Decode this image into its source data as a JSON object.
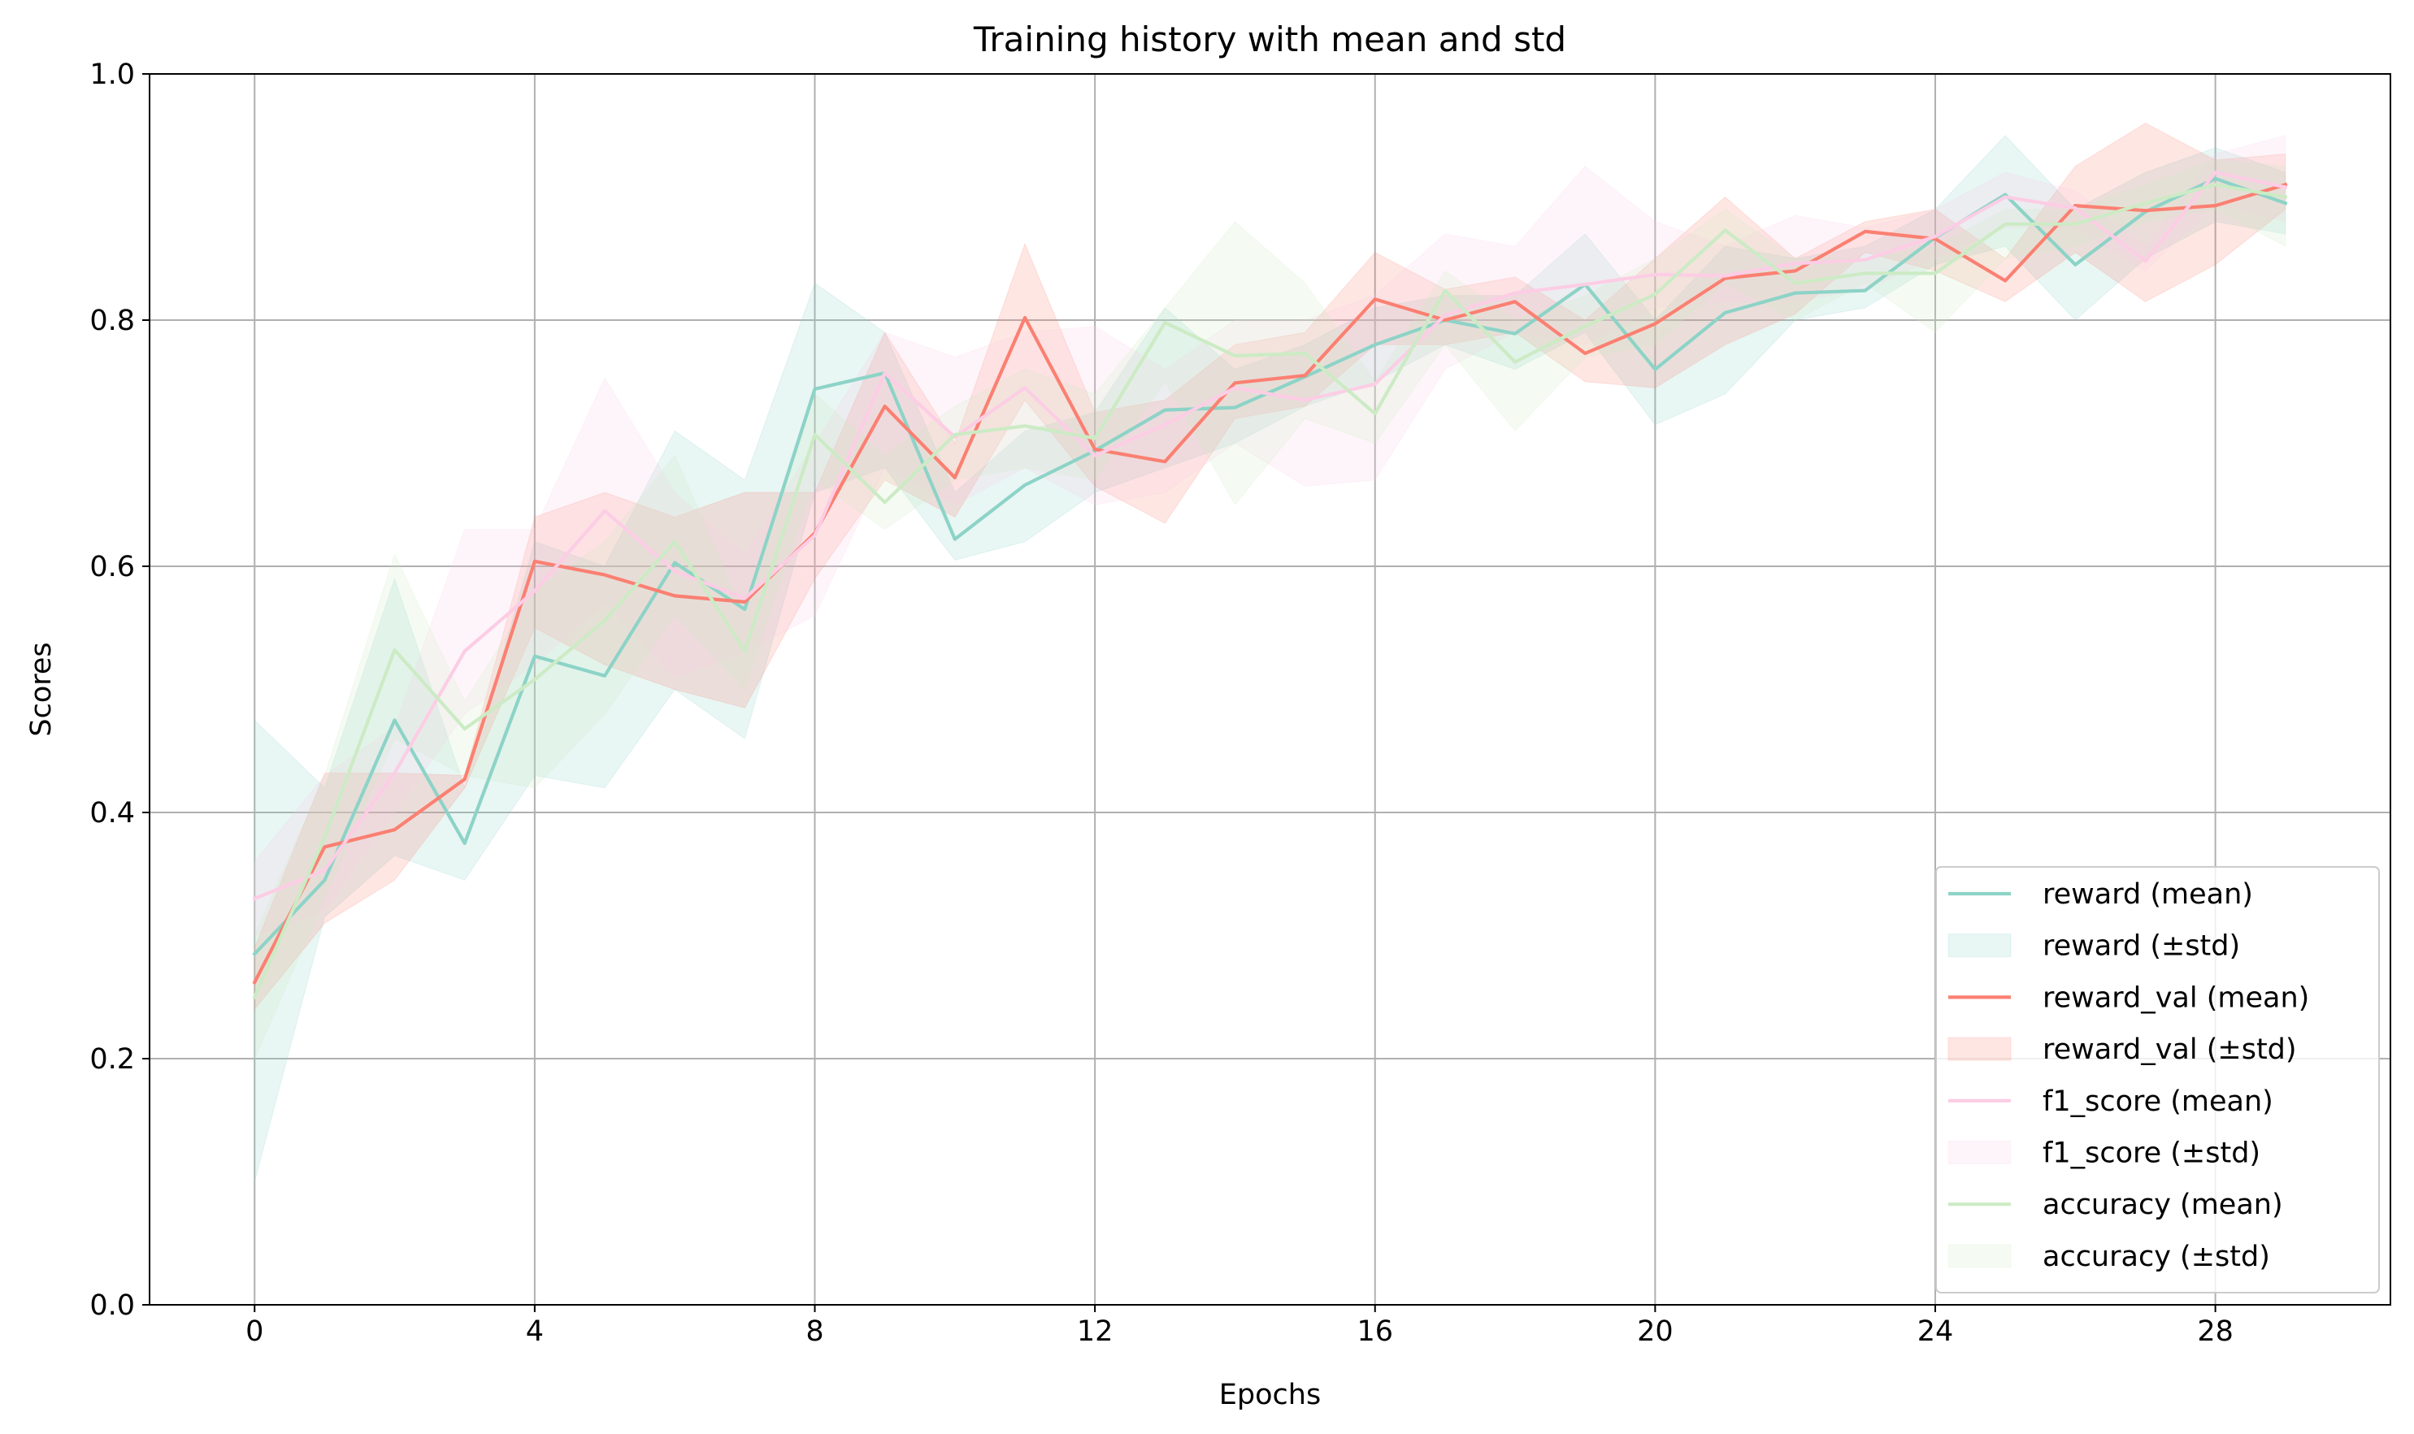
{
  "chart_data": {
    "type": "line",
    "title": "Training history with mean and std",
    "xlabel": "Epochs",
    "ylabel": "Scores",
    "xlim": [
      -1.5,
      30.5
    ],
    "ylim": [
      0.0,
      1.0
    ],
    "xticks": [
      0,
      4,
      8,
      12,
      16,
      20,
      24,
      28
    ],
    "yticks": [
      0.0,
      0.2,
      0.4,
      0.6,
      0.8,
      1.0
    ],
    "grid": true,
    "legend_placement": "bottom-right",
    "x": [
      0,
      1,
      2,
      3,
      4,
      5,
      6,
      7,
      8,
      9,
      10,
      11,
      12,
      13,
      14,
      15,
      16,
      17,
      18,
      19,
      20,
      21,
      22,
      23,
      24,
      25,
      26,
      27,
      28,
      29
    ],
    "series": [
      {
        "name": "reward",
        "mean_label": "reward (mean)",
        "std_label": "reward (±std)",
        "color": "#8dd3c7",
        "mean": [
          0.285,
          0.345,
          0.475,
          0.375,
          0.527,
          0.511,
          0.603,
          0.565,
          0.744,
          0.757,
          0.622,
          0.666,
          0.694,
          0.727,
          0.729,
          0.754,
          0.78,
          0.8,
          0.789,
          0.829,
          0.76,
          0.806,
          0.822,
          0.824,
          0.867,
          0.902,
          0.845,
          0.888,
          0.915,
          0.895
        ],
        "lower": [
          0.1,
          0.315,
          0.365,
          0.345,
          0.43,
          0.42,
          0.5,
          0.46,
          0.66,
          0.68,
          0.605,
          0.62,
          0.66,
          0.68,
          0.7,
          0.73,
          0.75,
          0.78,
          0.76,
          0.79,
          0.715,
          0.74,
          0.8,
          0.81,
          0.845,
          0.86,
          0.8,
          0.85,
          0.88,
          0.87
        ],
        "upper": [
          0.475,
          0.42,
          0.59,
          0.42,
          0.62,
          0.6,
          0.71,
          0.67,
          0.83,
          0.79,
          0.66,
          0.71,
          0.725,
          0.81,
          0.76,
          0.78,
          0.81,
          0.82,
          0.82,
          0.87,
          0.8,
          0.86,
          0.85,
          0.86,
          0.89,
          0.95,
          0.89,
          0.92,
          0.94,
          0.92
        ]
      },
      {
        "name": "reward_val",
        "mean_label": "reward_val (mean)",
        "std_label": "reward_val (±std)",
        "color": "#fb8072",
        "mean": [
          0.262,
          0.372,
          0.386,
          0.427,
          0.604,
          0.593,
          0.576,
          0.571,
          0.627,
          0.73,
          0.672,
          0.802,
          0.695,
          0.685,
          0.749,
          0.755,
          0.817,
          0.8,
          0.815,
          0.773,
          0.797,
          0.834,
          0.84,
          0.872,
          0.866,
          0.832,
          0.893,
          0.889,
          0.893,
          0.91
        ],
        "lower": [
          0.24,
          0.31,
          0.345,
          0.42,
          0.55,
          0.52,
          0.5,
          0.485,
          0.59,
          0.67,
          0.64,
          0.735,
          0.665,
          0.635,
          0.72,
          0.73,
          0.78,
          0.78,
          0.79,
          0.75,
          0.745,
          0.78,
          0.805,
          0.855,
          0.84,
          0.815,
          0.855,
          0.815,
          0.845,
          0.89
        ],
        "upper": [
          0.29,
          0.432,
          0.432,
          0.43,
          0.64,
          0.66,
          0.64,
          0.66,
          0.66,
          0.79,
          0.7,
          0.862,
          0.725,
          0.735,
          0.78,
          0.79,
          0.855,
          0.825,
          0.835,
          0.8,
          0.85,
          0.9,
          0.85,
          0.88,
          0.89,
          0.85,
          0.925,
          0.96,
          0.93,
          0.935
        ]
      },
      {
        "name": "f1_score",
        "mean_label": "f1_score (mean)",
        "std_label": "f1_score (±std)",
        "color": "#fccde5",
        "mean": [
          0.33,
          0.353,
          0.432,
          0.531,
          0.58,
          0.645,
          0.596,
          0.574,
          0.625,
          0.757,
          0.705,
          0.745,
          0.69,
          0.715,
          0.745,
          0.735,
          0.748,
          0.804,
          0.822,
          0.829,
          0.837,
          0.836,
          0.846,
          0.849,
          0.868,
          0.9,
          0.891,
          0.848,
          0.92,
          0.908
        ],
        "lower": [
          0.3,
          0.32,
          0.4,
          0.48,
          0.52,
          0.57,
          0.51,
          0.53,
          0.56,
          0.68,
          0.65,
          0.68,
          0.65,
          0.66,
          0.7,
          0.665,
          0.67,
          0.76,
          0.79,
          0.78,
          0.81,
          0.815,
          0.815,
          0.825,
          0.85,
          0.875,
          0.875,
          0.84,
          0.895,
          0.88
        ],
        "upper": [
          0.36,
          0.43,
          0.47,
          0.63,
          0.63,
          0.753,
          0.66,
          0.61,
          0.7,
          0.79,
          0.77,
          0.79,
          0.795,
          0.76,
          0.8,
          0.8,
          0.82,
          0.87,
          0.86,
          0.925,
          0.88,
          0.86,
          0.885,
          0.875,
          0.89,
          0.92,
          0.905,
          0.86,
          0.935,
          0.95
        ]
      },
      {
        "name": "accuracy",
        "mean_label": "accuracy (mean)",
        "std_label": "accuracy (±std)",
        "color": "#ccebc5",
        "mean": [
          0.25,
          0.38,
          0.532,
          0.468,
          0.508,
          0.556,
          0.62,
          0.531,
          0.707,
          0.652,
          0.707,
          0.714,
          0.704,
          0.798,
          0.771,
          0.773,
          0.724,
          0.824,
          0.766,
          0.795,
          0.821,
          0.873,
          0.83,
          0.838,
          0.838,
          0.878,
          0.878,
          0.895,
          0.91,
          0.9
        ],
        "lower": [
          0.2,
          0.33,
          0.46,
          0.43,
          0.42,
          0.48,
          0.56,
          0.5,
          0.67,
          0.63,
          0.67,
          0.68,
          0.67,
          0.75,
          0.65,
          0.72,
          0.7,
          0.78,
          0.71,
          0.77,
          0.78,
          0.83,
          0.8,
          0.83,
          0.79,
          0.85,
          0.86,
          0.88,
          0.89,
          0.86
        ],
        "upper": [
          0.3,
          0.43,
          0.61,
          0.49,
          0.58,
          0.62,
          0.69,
          0.56,
          0.74,
          0.69,
          0.73,
          0.76,
          0.74,
          0.81,
          0.88,
          0.83,
          0.75,
          0.84,
          0.8,
          0.82,
          0.85,
          0.89,
          0.85,
          0.85,
          0.86,
          0.89,
          0.89,
          0.91,
          0.93,
          0.925
        ]
      }
    ]
  }
}
